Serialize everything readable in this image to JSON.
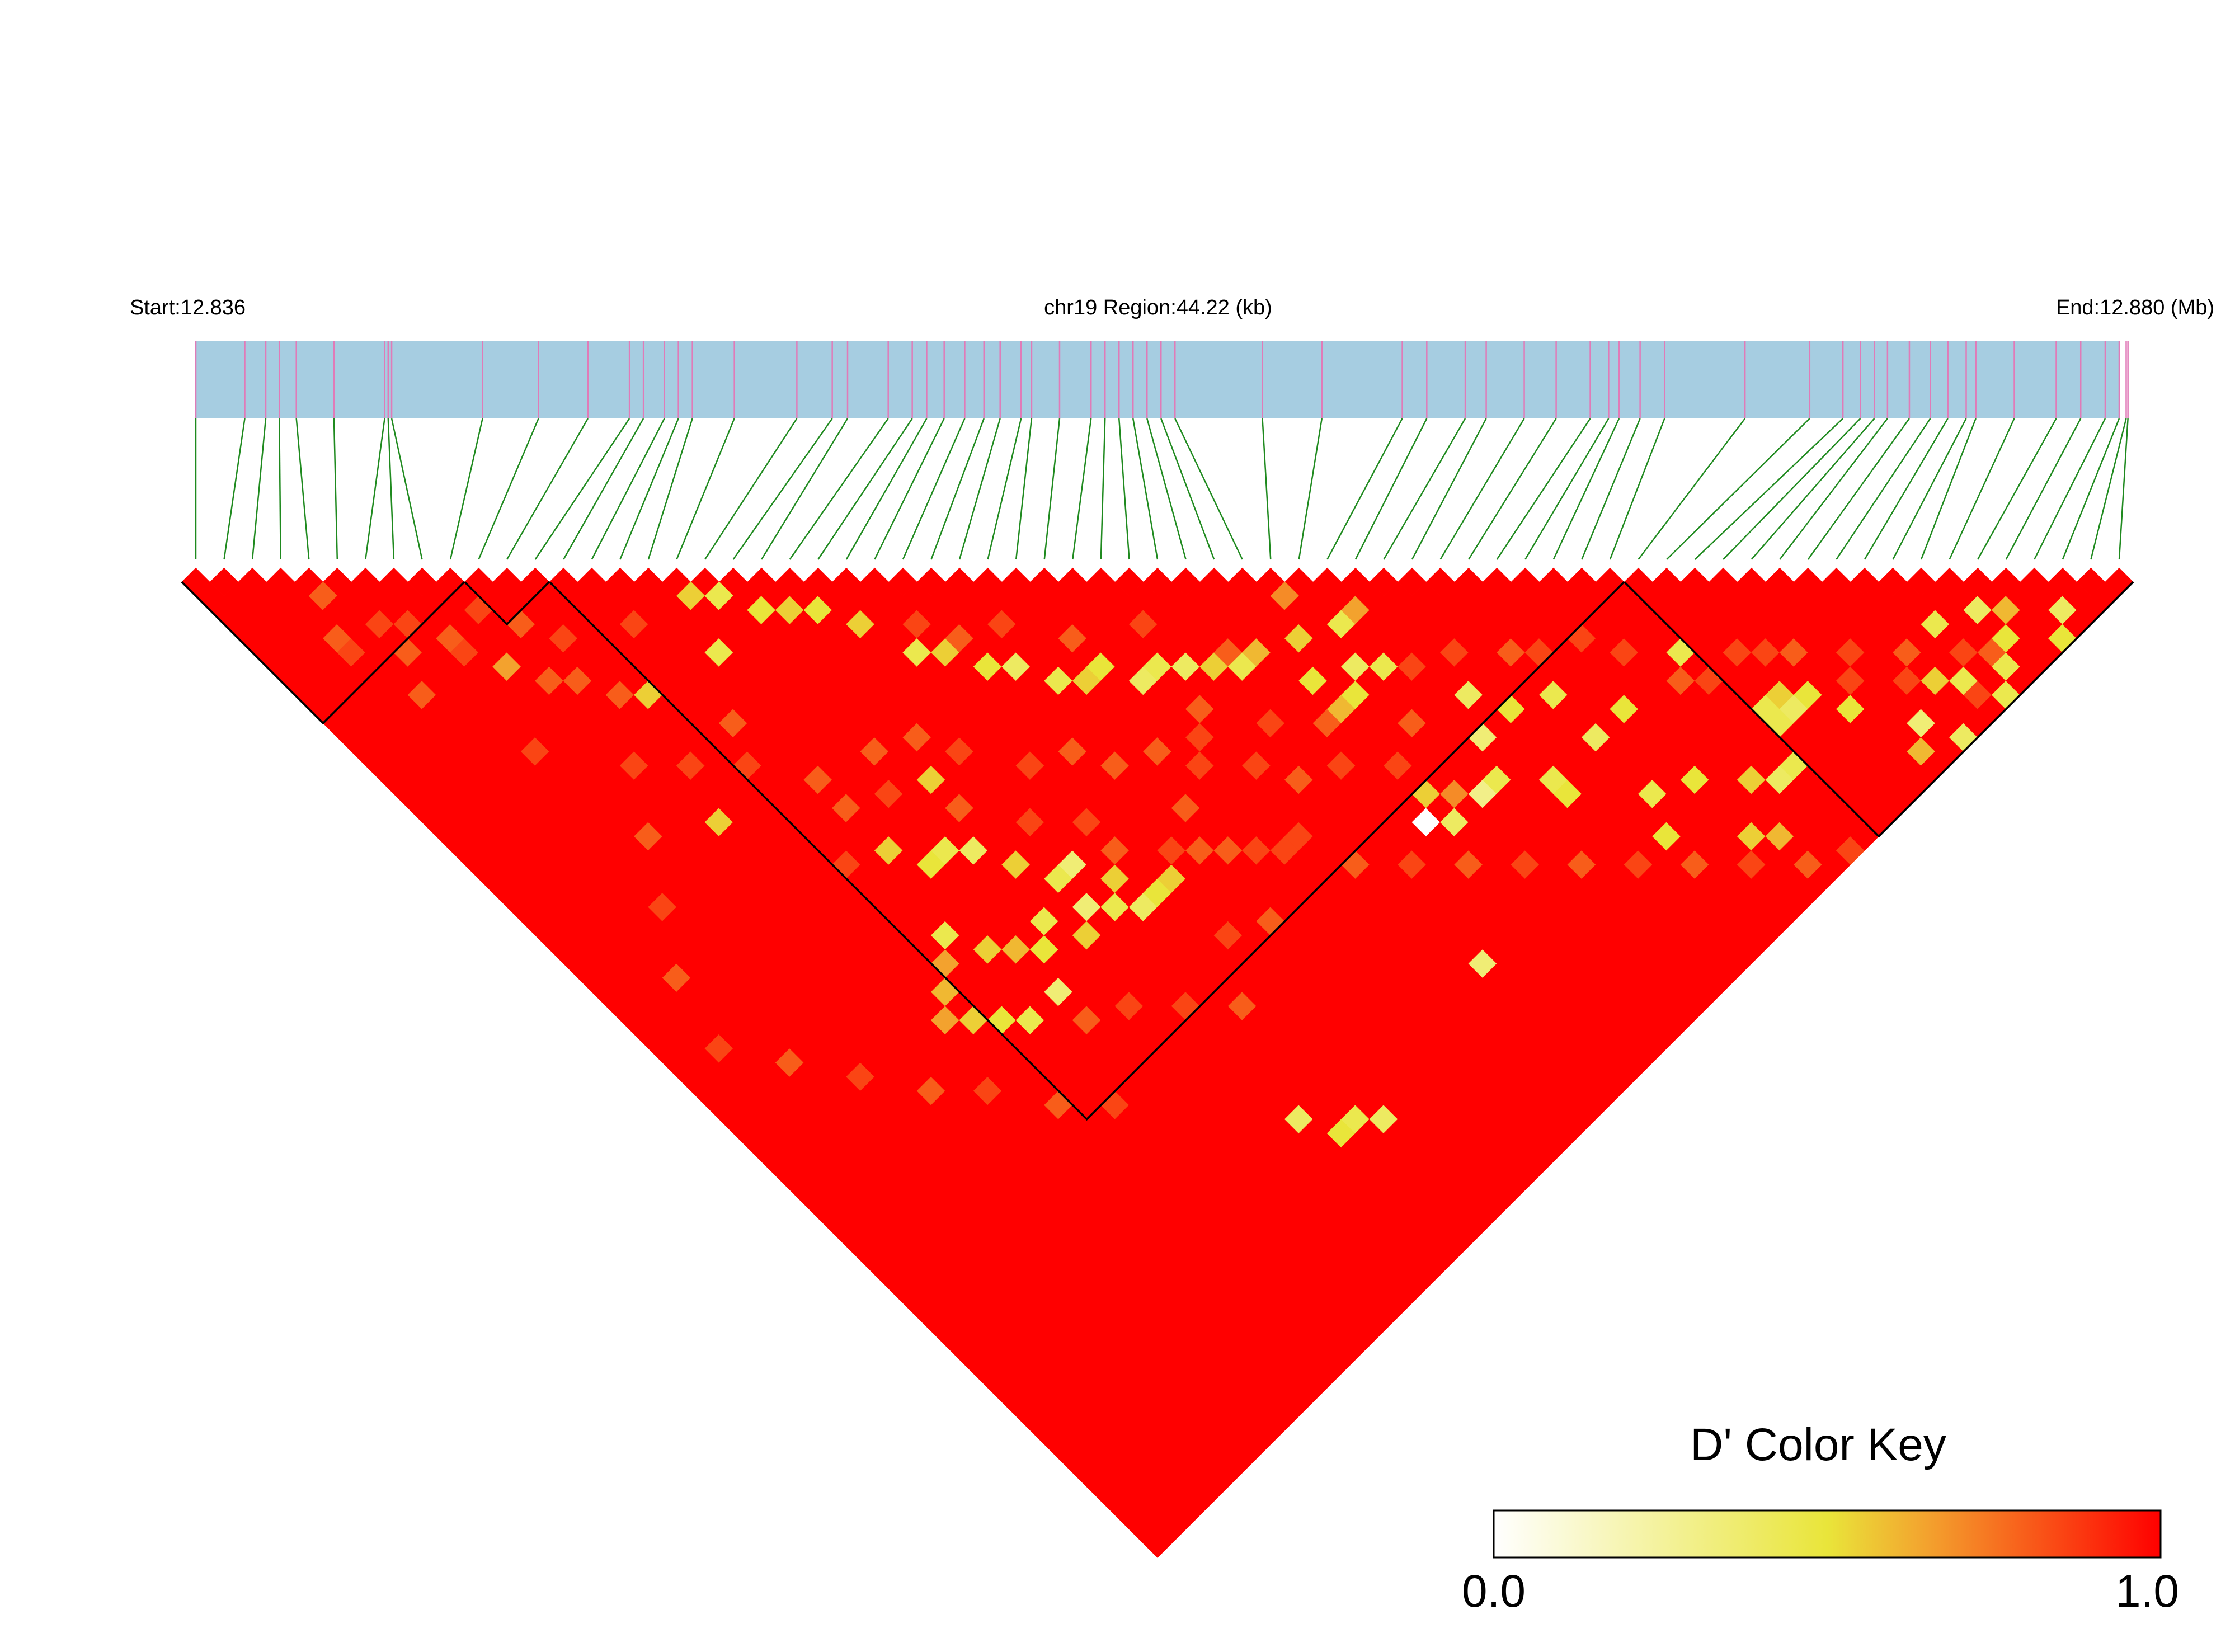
{
  "chart_data": {
    "type": "heatmap",
    "subtype": "ld-triangle",
    "header": {
      "start_label": "Start:12.836",
      "region_label": "chr19 Region:44.22 (kb)",
      "end_label": "End:12.880 (Mb)"
    },
    "region": {
      "chromosome": "chr19",
      "start_mb": 12.836,
      "end_mb": 12.88,
      "length_kb": 44.22
    },
    "snp_count": 69,
    "snp_positions_mb": [
      12.836,
      12.83712,
      12.8376,
      12.83791,
      12.8383,
      12.83916,
      12.84032,
      12.8404,
      12.84048,
      12.84256,
      12.84384,
      12.84497,
      12.84592,
      12.84624,
      12.84672,
      12.84704,
      12.84736,
      12.84832,
      12.84975,
      12.85056,
      12.85091,
      12.85184,
      12.85239,
      12.85272,
      12.85312,
      12.85359,
      12.85403,
      12.8544,
      12.85488,
      12.85512,
      12.85576,
      12.85648,
      12.8568,
      12.85712,
      12.85744,
      12.85776,
      12.85808,
      12.8584,
      12.8604,
      12.86176,
      12.8636,
      12.86416,
      12.86504,
      12.86552,
      12.86639,
      12.86712,
      12.8679,
      12.86832,
      12.86856,
      12.86904,
      12.8696,
      12.87144,
      12.87292,
      12.87368,
      12.87408,
      12.8744,
      12.8747,
      12.8752,
      12.87568,
      12.87608,
      12.8765,
      12.87672,
      12.8776,
      12.87856,
      12.87912,
      12.87968,
      12.88,
      12.88016,
      12.8802
    ],
    "metric": "D'",
    "color_key": {
      "title": "D' Color Key",
      "min_label": "0.0",
      "max_label": "1.0",
      "min": 0.0,
      "max": 1.0,
      "stops": [
        "#ffffff",
        "#e9e53a",
        "#f3a22e",
        "#ff0000"
      ]
    },
    "default_value": 1.0,
    "low_pairs": [
      [
        3,
        7,
        0.8
      ],
      [
        4,
        5,
        0.8
      ],
      [
        3,
        8,
        0.85
      ],
      [
        6,
        9,
        0.85
      ],
      [
        5,
        10,
        0.8
      ],
      [
        7,
        12,
        0.85
      ],
      [
        4,
        12,
        0.8
      ],
      [
        8,
        14,
        0.65
      ],
      [
        10,
        17,
        0.8
      ],
      [
        9,
        16,
        0.8
      ],
      [
        12,
        20,
        0.55
      ],
      [
        6,
        18,
        0.85
      ],
      [
        14,
        24,
        0.8
      ],
      [
        11,
        24,
        0.85
      ],
      [
        10,
        27,
        0.55
      ],
      [
        15,
        31,
        0.8
      ],
      [
        18,
        30,
        0.8
      ],
      [
        13,
        33,
        0.85
      ],
      [
        19,
        33,
        0.55
      ],
      [
        16,
        21,
        0.45
      ],
      [
        14,
        17,
        0.85
      ],
      [
        17,
        18,
        0.55
      ],
      [
        18,
        19,
        0.45
      ],
      [
        19,
        21,
        0.5
      ],
      [
        20,
        22,
        0.55
      ],
      [
        21,
        23,
        0.5
      ],
      [
        22,
        25,
        0.55
      ],
      [
        23,
        28,
        0.45
      ],
      [
        24,
        29,
        0.55
      ],
      [
        25,
        31,
        0.5
      ],
      [
        26,
        32,
        0.4
      ],
      [
        27,
        34,
        0.45
      ],
      [
        28,
        35,
        0.55
      ],
      [
        29,
        35,
        0.5
      ],
      [
        30,
        37,
        0.4
      ],
      [
        31,
        37,
        0.45
      ],
      [
        32,
        38,
        0.4
      ],
      [
        33,
        39,
        0.55
      ],
      [
        34,
        40,
        0.45
      ],
      [
        35,
        40,
        0.6
      ],
      [
        15,
        34,
        0.55
      ],
      [
        16,
        36,
        0.5
      ],
      [
        17,
        36,
        0.45
      ],
      [
        18,
        37,
        0.4
      ],
      [
        19,
        39,
        0.55
      ],
      [
        20,
        41,
        0.45
      ],
      [
        21,
        41,
        0.35
      ],
      [
        22,
        43,
        0.55
      ],
      [
        14,
        39,
        0.45
      ],
      [
        13,
        40,
        0.65
      ],
      [
        15,
        41,
        0.55
      ],
      [
        16,
        42,
        0.6
      ],
      [
        17,
        43,
        0.5
      ],
      [
        18,
        42,
        0.45
      ],
      [
        20,
        43,
        0.35
      ],
      [
        19,
        44,
        0.55
      ],
      [
        21,
        44,
        0.45
      ],
      [
        22,
        45,
        0.4
      ],
      [
        23,
        45,
        0.5
      ],
      [
        24,
        45,
        0.55
      ],
      [
        12,
        41,
        0.6
      ],
      [
        11,
        42,
        0.65
      ],
      [
        12,
        43,
        0.55
      ],
      [
        13,
        44,
        0.5
      ],
      [
        14,
        45,
        0.45
      ],
      [
        16,
        45,
        0.35
      ],
      [
        38,
        39,
        0.7
      ],
      [
        37,
        41,
        0.55
      ],
      [
        39,
        42,
        0.45
      ],
      [
        40,
        42,
        0.65
      ],
      [
        36,
        43,
        0.5
      ],
      [
        38,
        44,
        0.4
      ],
      [
        36,
        45,
        0.6
      ],
      [
        37,
        45,
        0.5
      ],
      [
        39,
        45,
        0.45
      ],
      [
        60,
        63,
        0.45
      ],
      [
        62,
        64,
        0.4
      ],
      [
        59,
        66,
        0.45
      ],
      [
        58,
        65,
        0.55
      ],
      [
        62,
        66,
        0.5
      ],
      [
        63,
        65,
        0.6
      ],
      [
        61,
        67,
        0.45
      ],
      [
        64,
        68,
        0.5
      ],
      [
        65,
        67,
        0.4
      ],
      [
        60,
        68,
        0.45
      ],
      [
        55,
        67,
        0.6
      ],
      [
        56,
        66,
        0.35
      ],
      [
        57,
        68,
        0.4
      ],
      [
        54,
        63,
        0.5
      ],
      [
        50,
        63,
        0.45
      ],
      [
        49,
        63,
        0.4
      ],
      [
        44,
        59,
        0.45
      ],
      [
        46,
        60,
        0.5
      ],
      [
        41,
        55,
        0.45
      ],
      [
        40,
        51,
        0.35
      ],
      [
        44,
        55,
        0.4
      ],
      [
        38,
        53,
        0.3
      ],
      [
        35,
        52,
        0.0
      ],
      [
        37,
        52,
        0.7
      ],
      [
        39,
        53,
        0.45
      ],
      [
        42,
        51,
        0.5
      ],
      [
        50,
        55,
        0.45
      ],
      [
        52,
        60,
        0.55
      ],
      [
        53,
        61,
        0.5
      ],
      [
        47,
        65,
        0.6
      ],
      [
        48,
        62,
        0.55
      ],
      [
        43,
        61,
        0.5
      ],
      [
        51,
        61,
        0.45
      ],
      [
        46,
        64,
        0.55
      ],
      [
        41,
        56,
        0.5
      ],
      [
        44,
        52,
        0.45
      ],
      [
        36,
        51,
        0.55
      ],
      [
        41,
        49,
        0.4
      ],
      [
        46,
        55,
        0.5
      ],
      [
        51,
        60,
        0.45
      ],
      [
        52,
        61,
        0.4
      ],
      [
        22,
        60,
        0.45
      ],
      [
        20,
        58,
        0.4
      ],
      [
        21,
        60,
        0.5
      ],
      [
        23,
        61,
        0.4
      ],
      [
        32,
        59,
        0.35
      ],
      [
        36,
        53,
        0.4
      ],
      [
        7,
        11,
        0.8
      ],
      [
        9,
        11,
        0.85
      ],
      [
        5,
        8,
        0.85
      ],
      [
        10,
        13,
        0.8
      ],
      [
        11,
        15,
        0.85
      ],
      [
        24,
        27,
        0.85
      ],
      [
        25,
        29,
        0.8
      ],
      [
        27,
        30,
        0.85
      ],
      [
        29,
        33,
        0.8
      ],
      [
        32,
        35,
        0.85
      ],
      [
        34,
        39,
        0.8
      ],
      [
        27,
        43,
        0.8
      ],
      [
        30,
        41,
        0.85
      ],
      [
        26,
        45,
        0.8
      ],
      [
        31,
        44,
        0.85
      ],
      [
        28,
        40,
        0.8
      ],
      [
        23,
        40,
        0.85
      ],
      [
        25,
        37,
        0.8
      ],
      [
        21,
        33,
        0.85
      ],
      [
        20,
        31,
        0.8
      ],
      [
        23,
        36,
        0.85
      ],
      [
        26,
        39,
        0.8
      ],
      [
        29,
        42,
        0.85
      ],
      [
        31,
        40,
        0.8
      ],
      [
        33,
        43,
        0.85
      ],
      [
        35,
        45,
        0.8
      ],
      [
        42,
        47,
        0.85
      ],
      [
        45,
        50,
        0.85
      ],
      [
        48,
        53,
        0.85
      ],
      [
        50,
        57,
        0.85
      ],
      [
        53,
        58,
        0.85
      ],
      [
        55,
        62,
        0.85
      ],
      [
        57,
        64,
        0.85
      ],
      [
        59,
        67,
        0.85
      ],
      [
        61,
        66,
        0.8
      ],
      [
        44,
        49,
        0.8
      ],
      [
        47,
        51,
        0.85
      ],
      [
        49,
        56,
        0.8
      ],
      [
        52,
        57,
        0.85
      ],
      [
        54,
        59,
        0.8
      ],
      [
        56,
        61,
        0.85
      ],
      [
        58,
        63,
        0.8
      ],
      [
        60,
        65,
        0.85
      ],
      [
        40,
        46,
        0.85
      ],
      [
        38,
        48,
        0.8
      ],
      [
        36,
        49,
        0.85
      ],
      [
        34,
        47,
        0.85
      ],
      [
        32,
        46,
        0.8
      ],
      [
        30,
        48,
        0.85
      ],
      [
        28,
        47,
        0.85
      ],
      [
        26,
        50,
        0.8
      ],
      [
        24,
        49,
        0.85
      ],
      [
        22,
        52,
        0.8
      ],
      [
        20,
        50,
        0.85
      ],
      [
        18,
        48,
        0.85
      ],
      [
        16,
        47,
        0.8
      ],
      [
        14,
        51,
        0.85
      ],
      [
        12,
        49,
        0.8
      ],
      [
        10,
        46,
        0.85
      ],
      [
        8,
        44,
        0.8
      ],
      [
        6,
        41,
        0.85
      ],
      [
        4,
        38,
        0.8
      ],
      [
        2,
        35,
        0.85
      ],
      [
        3,
        31,
        0.8
      ],
      [
        5,
        28,
        0.85
      ],
      [
        7,
        25,
        0.8
      ],
      [
        9,
        22,
        0.85
      ],
      [
        11,
        19,
        0.8
      ],
      [
        13,
        26,
        0.85
      ],
      [
        15,
        29,
        0.8
      ],
      [
        17,
        32,
        0.85
      ],
      [
        19,
        35,
        0.8
      ],
      [
        21,
        38,
        0.85
      ],
      [
        23,
        42,
        0.8
      ],
      [
        25,
        44,
        0.85
      ],
      [
        27,
        46,
        0.8
      ],
      [
        29,
        48,
        0.85
      ],
      [
        31,
        51,
        0.8
      ],
      [
        33,
        53,
        0.85
      ],
      [
        35,
        55,
        0.8
      ],
      [
        37,
        57,
        0.85
      ],
      [
        39,
        59,
        0.8
      ],
      [
        41,
        61,
        0.85
      ],
      [
        43,
        63,
        0.8
      ],
      [
        45,
        65,
        0.85
      ],
      [
        47,
        67,
        0.8
      ],
      [
        49,
        68,
        0.85
      ]
    ],
    "blocks": [
      [
        0,
        9
      ],
      [
        10,
        12
      ],
      [
        13,
        50
      ],
      [
        51,
        68
      ]
    ]
  }
}
